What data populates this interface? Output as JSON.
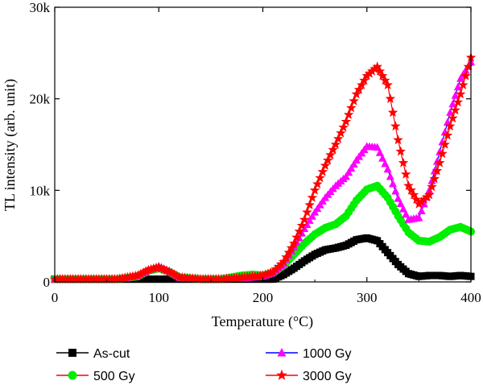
{
  "chart_data": {
    "type": "scatter",
    "title": "",
    "xlabel": "Temperature (°C)",
    "ylabel": "TL intensity (arb. unit)",
    "xlim": [
      0,
      400
    ],
    "ylim": [
      0,
      30000
    ],
    "x_ticks": [
      {
        "value": 0,
        "label": "0"
      },
      {
        "value": 100,
        "label": "100"
      },
      {
        "value": 200,
        "label": "200"
      },
      {
        "value": 300,
        "label": "300"
      },
      {
        "value": 400,
        "label": "400"
      }
    ],
    "y_ticks": [
      {
        "value": 0,
        "label": "0"
      },
      {
        "value": 10000,
        "label": "10k"
      },
      {
        "value": 20000,
        "label": "20k"
      },
      {
        "value": 30000,
        "label": "30k"
      }
    ],
    "grid": false,
    "legend_position": "bottom",
    "series": [
      {
        "name": "As-cut",
        "color": "#000000",
        "marker": "square",
        "x": [
          0,
          20,
          40,
          60,
          80,
          90,
          100,
          110,
          120,
          140,
          160,
          180,
          200,
          210,
          220,
          230,
          240,
          250,
          260,
          270,
          280,
          290,
          300,
          310,
          320,
          330,
          340,
          350,
          360,
          370,
          380,
          390,
          400
        ],
        "y": [
          300,
          300,
          300,
          300,
          300,
          300,
          300,
          300,
          300,
          300,
          300,
          300,
          300,
          300,
          800,
          1500,
          2300,
          3000,
          3500,
          3700,
          4000,
          4600,
          4800,
          4500,
          3200,
          1900,
          900,
          600,
          700,
          700,
          600,
          700,
          600
        ]
      },
      {
        "name": "500 Gy",
        "color": "#ff0000",
        "marker": "circle",
        "marker_color": "#00ee00",
        "x": [
          0,
          20,
          40,
          60,
          80,
          90,
          100,
          110,
          120,
          140,
          160,
          180,
          190,
          200,
          210,
          220,
          230,
          240,
          250,
          260,
          270,
          280,
          290,
          300,
          310,
          320,
          330,
          340,
          350,
          360,
          370,
          380,
          390,
          400
        ],
        "y": [
          300,
          300,
          300,
          300,
          600,
          1200,
          1500,
          1100,
          500,
          300,
          300,
          700,
          800,
          700,
          1000,
          1800,
          3000,
          4200,
          5200,
          5900,
          6300,
          7200,
          8900,
          10100,
          10500,
          9200,
          7200,
          5400,
          4500,
          4400,
          4900,
          5700,
          6000,
          5500
        ]
      },
      {
        "name": "1000 Gy",
        "color": "#0000ff",
        "marker": "triangle",
        "marker_color": "#ff00ff",
        "x": [
          0,
          20,
          40,
          60,
          80,
          90,
          100,
          110,
          120,
          140,
          160,
          180,
          200,
          210,
          220,
          230,
          240,
          250,
          260,
          270,
          280,
          290,
          300,
          310,
          320,
          330,
          340,
          350,
          360,
          370,
          380,
          390,
          400
        ],
        "y": [
          300,
          300,
          300,
          300,
          700,
          1300,
          1700,
          1200,
          500,
          300,
          300,
          400,
          600,
          1000,
          2000,
          3800,
          5800,
          7600,
          9200,
          10500,
          11500,
          13300,
          14800,
          14700,
          12300,
          9100,
          6800,
          7000,
          10000,
          14200,
          18500,
          22200,
          24000
        ]
      },
      {
        "name": "3000 Gy",
        "color": "#ff0000",
        "marker": "star",
        "x": [
          0,
          20,
          40,
          60,
          80,
          90,
          100,
          110,
          120,
          140,
          160,
          180,
          200,
          210,
          220,
          230,
          240,
          250,
          260,
          270,
          280,
          290,
          300,
          310,
          320,
          330,
          340,
          350,
          360,
          370,
          380,
          390,
          400
        ],
        "y": [
          300,
          300,
          300,
          300,
          700,
          1300,
          1600,
          1100,
          500,
          300,
          300,
          500,
          700,
          1100,
          2200,
          4200,
          6800,
          10000,
          12700,
          15000,
          17500,
          20500,
          22500,
          23500,
          21500,
          15500,
          10500,
          8500,
          9500,
          13000,
          17000,
          20500,
          24500
        ]
      }
    ]
  }
}
